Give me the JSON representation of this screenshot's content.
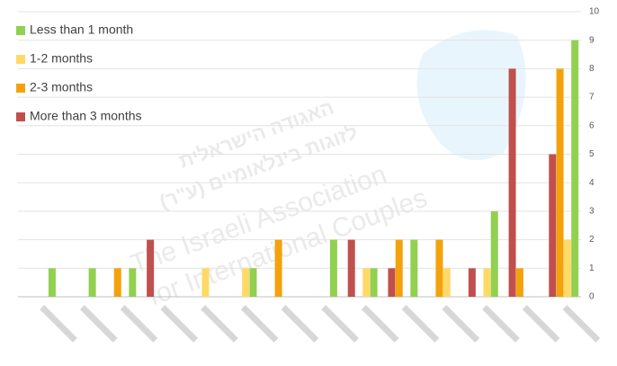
{
  "chart_data": {
    "type": "bar",
    "categories": [
      null,
      null,
      null,
      null,
      null,
      null,
      null,
      null,
      null,
      null,
      null,
      null,
      null,
      null
    ],
    "series": [
      {
        "name": "Less than 1 month",
        "color": "#92d050",
        "values": [
          1,
          1,
          1,
          0,
          0,
          1,
          0,
          2,
          1,
          2,
          0,
          3,
          0,
          9
        ]
      },
      {
        "name": "1-2 months",
        "color": "#ffd966",
        "values": [
          0,
          0,
          0,
          0,
          1,
          1,
          0,
          0,
          1,
          0,
          1,
          1,
          0,
          2
        ]
      },
      {
        "name": "2-3 months",
        "color": "#f4a20c",
        "values": [
          0,
          0,
          1,
          0,
          0,
          0,
          2,
          0,
          0,
          2,
          2,
          0,
          1,
          8
        ]
      },
      {
        "name": "More than 3 months",
        "color": "#c0504d",
        "values": [
          0,
          0,
          0,
          2,
          0,
          0,
          0,
          0,
          2,
          1,
          0,
          1,
          8,
          5
        ]
      }
    ],
    "ylim": [
      0,
      10
    ],
    "yticks": [
      0,
      1,
      2,
      3,
      4,
      5,
      6,
      7,
      8,
      9,
      10
    ],
    "grid": true,
    "legend": "top-left",
    "watermark": [
      "האגודה הישראלית",
      "לזוגות בינלאומיים (ע\"ר)",
      "The Israeli Association",
      "for International Couples"
    ]
  }
}
